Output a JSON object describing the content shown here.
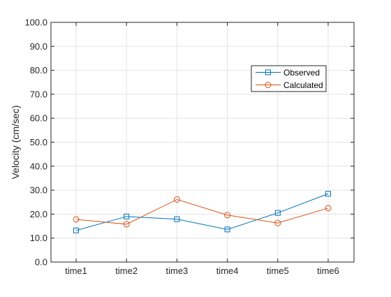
{
  "chart_data": {
    "type": "line",
    "title": "",
    "xlabel": "",
    "ylabel": "Velocity (cm/sec)",
    "categories": [
      "time1",
      "time2",
      "time3",
      "time4",
      "time5",
      "time6"
    ],
    "ylim": [
      0,
      100
    ],
    "yticks": [
      "0.0",
      "10.0",
      "20.0",
      "30.0",
      "40.0",
      "50.0",
      "60.0",
      "70.0",
      "80.0",
      "90.0",
      "100.0"
    ],
    "grid": true,
    "legend_position": "upper-right",
    "series": [
      {
        "name": "Observed",
        "values": [
          13.2,
          19.0,
          17.9,
          13.6,
          20.5,
          28.5
        ],
        "color": "#0072BD",
        "marker": "square"
      },
      {
        "name": "Calculated",
        "values": [
          17.8,
          15.8,
          26.1,
          19.6,
          16.3,
          22.5
        ],
        "color": "#D95319",
        "marker": "circle"
      }
    ]
  }
}
